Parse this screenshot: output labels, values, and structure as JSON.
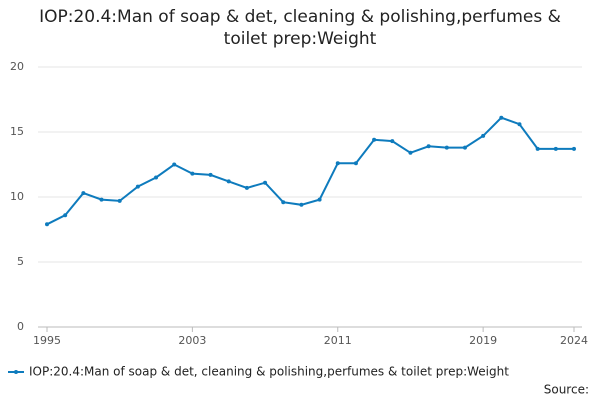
{
  "chart_data": {
    "type": "line",
    "title": "IOP:20.4:Man of soap & det, cleaning & polishing,perfumes & toilet prep:Weight",
    "x": [
      1995,
      1996,
      1997,
      1998,
      1999,
      2000,
      2001,
      2002,
      2003,
      2004,
      2005,
      2006,
      2007,
      2008,
      2009,
      2010,
      2011,
      2012,
      2013,
      2014,
      2015,
      2016,
      2017,
      2018,
      2019,
      2020,
      2021,
      2022,
      2023,
      2024
    ],
    "series": [
      {
        "name": "IOP:20.4:Man of soap & det, cleaning & polishing,perfumes & toilet prep:Weight",
        "color": "#0e7bbd",
        "values": [
          7.9,
          8.6,
          10.3,
          9.8,
          9.7,
          10.8,
          11.5,
          12.5,
          11.8,
          11.7,
          11.2,
          10.7,
          11.1,
          9.6,
          9.4,
          9.8,
          12.6,
          12.6,
          14.4,
          14.3,
          13.4,
          13.9,
          13.8,
          13.8,
          14.7,
          16.1,
          15.6,
          13.7,
          13.7,
          13.7
        ]
      }
    ],
    "xlim": [
      1995,
      2024
    ],
    "xticks": [
      1995,
      2003,
      2011,
      2019,
      2024
    ],
    "ylim": [
      0,
      20
    ],
    "yticks": [
      0,
      5,
      10,
      15,
      20
    ],
    "grid": true,
    "source_label": "Source:"
  }
}
